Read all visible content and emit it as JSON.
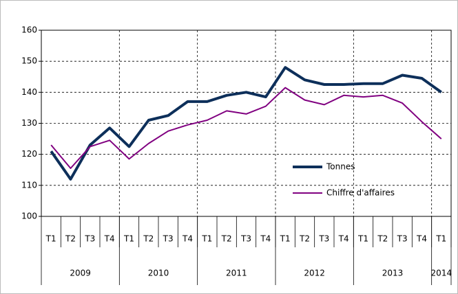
{
  "chart_data": {
    "type": "line",
    "categories": [
      "T1",
      "T2",
      "T3",
      "T4",
      "T1",
      "T2",
      "T3",
      "T4",
      "T1",
      "T2",
      "T3",
      "T4",
      "T1",
      "T2",
      "T3",
      "T4",
      "T1",
      "T2",
      "T3",
      "T4",
      "T1"
    ],
    "years": [
      "2009",
      "2010",
      "2011",
      "2012",
      "2013",
      "2014"
    ],
    "series": [
      {
        "name": "Tonnes",
        "color": "#0d2f5a",
        "values": [
          121,
          112,
          123,
          128.5,
          122.5,
          131,
          132.5,
          137,
          137,
          139,
          140,
          138.5,
          148,
          144,
          142.5,
          142.5,
          142.8,
          142.8,
          145.5,
          144.5,
          140
        ]
      },
      {
        "name": "Chiffre d'affaires",
        "color": "#800080",
        "values": [
          123,
          115.5,
          122.5,
          124.5,
          118.5,
          123.5,
          127.5,
          129.5,
          131,
          134,
          133,
          135.5,
          141.5,
          137.5,
          136,
          139,
          138.5,
          139,
          136.5,
          130.5,
          125
        ]
      }
    ],
    "ylim": [
      100,
      160
    ],
    "yticks": [
      100,
      110,
      120,
      130,
      140,
      150,
      160
    ],
    "grid": true
  }
}
